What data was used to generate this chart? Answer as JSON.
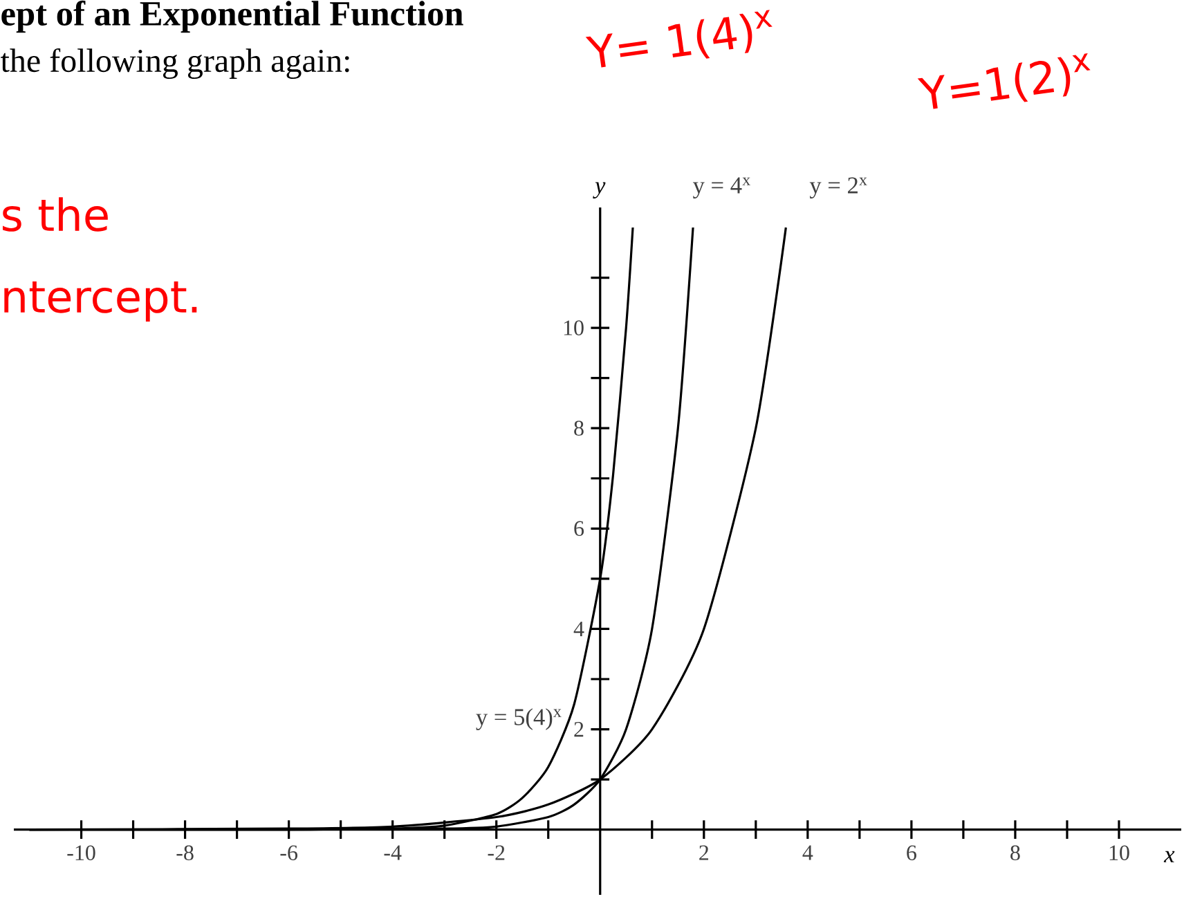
{
  "chart_data": {
    "type": "line",
    "title": "ept of an Exponential Function",
    "subtitle": "the following graph again:",
    "xlabel": "x",
    "ylabel": "y",
    "annotations": [
      "Y= 1(4)$^{x}$",
      "Y=1(2)$^{x}$",
      "s the",
      "ntercept."
    ],
    "xlim": [
      -11.3,
      11.2
    ],
    "ylim": [
      -1.3,
      12.4
    ],
    "xticks": [
      -10,
      {
        "value": -9,
        "label": null
      },
      -8,
      {
        "value": -7,
        "label": null
      },
      -6,
      {
        "value": -5,
        "label": null
      },
      -4,
      {
        "value": -3,
        "label": null
      },
      -2,
      {
        "value": -1,
        "label": null
      },
      {
        "value": 0,
        "label": null
      },
      {
        "value": 1,
        "label": null
      },
      2,
      {
        "value": 3,
        "label": null
      },
      4,
      {
        "value": 5,
        "label": null
      },
      6,
      {
        "value": 7,
        "label": null
      },
      8,
      {
        "value": 9,
        "label": null
      },
      10
    ],
    "yticks": [
      {
        "value": 1,
        "label": null
      },
      2,
      {
        "value": 3,
        "label": null
      },
      4,
      {
        "value": 5,
        "label": null
      },
      6,
      {
        "value": 7,
        "label": null
      },
      8,
      {
        "value": 9,
        "label": null
      },
      10,
      {
        "value": 11,
        "label": null
      }
    ],
    "grid": false,
    "marker": "none",
    "line_style": "solid",
    "series": [
      {
        "name": "y = 5(4)$^{x}$",
        "color": "#000000",
        "x": [
          -11,
          -6,
          -4,
          -3,
          -2,
          -1.5,
          -1,
          -0.5,
          0,
          0.25,
          0.5,
          0.63
        ],
        "values": [
          0,
          0,
          0.02,
          0.08,
          0.31,
          0.63,
          1.25,
          2.5,
          5,
          7.07,
          10,
          12
        ]
      },
      {
        "name": "y = 4$^{x}$",
        "color": "#000000",
        "x": [
          -11,
          -6,
          -3,
          -2,
          -1,
          -0.5,
          0,
          0.5,
          1,
          1.5,
          1.79
        ],
        "values": [
          0,
          0,
          0.02,
          0.06,
          0.25,
          0.5,
          1,
          2,
          4,
          8,
          12
        ]
      },
      {
        "name": "y = 2$^{x}$",
        "color": "#000000",
        "x": [
          -11,
          -6,
          -4,
          -2,
          -1,
          0,
          1,
          2,
          3,
          3.58
        ],
        "values": [
          0,
          0.02,
          0.06,
          0.25,
          0.5,
          1,
          2,
          4,
          8,
          12
        ]
      }
    ]
  }
}
